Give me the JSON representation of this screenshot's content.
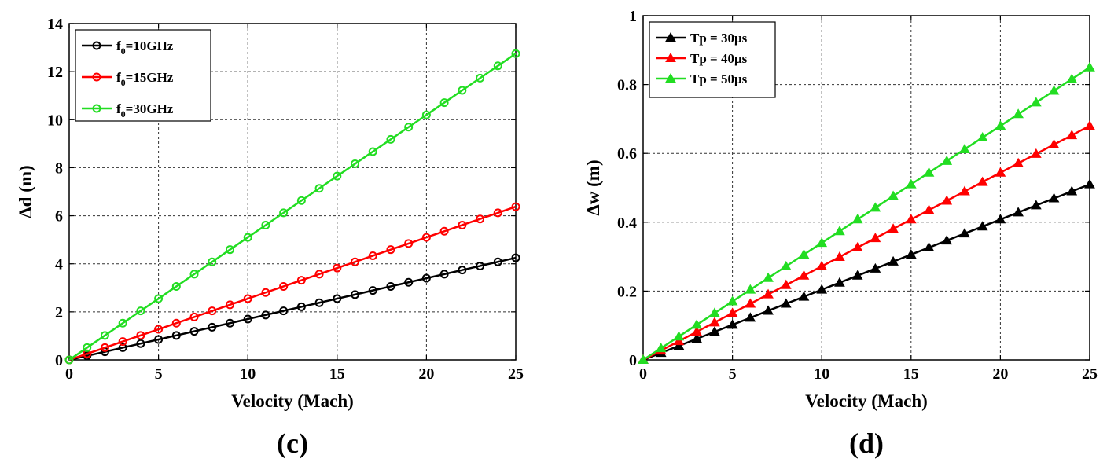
{
  "chart_data": [
    {
      "type": "line",
      "caption": "(c)",
      "xlabel": "Velocity (Mach)",
      "ylabel": "Δd (m)",
      "xlim": [
        0,
        25
      ],
      "ylim": [
        0,
        14
      ],
      "xticks": [
        0,
        5,
        10,
        15,
        20,
        25
      ],
      "yticks": [
        0,
        2,
        4,
        6,
        8,
        10,
        12,
        14
      ],
      "xtick_labels": [
        "0",
        "5",
        "10",
        "15",
        "20",
        "25"
      ],
      "ytick_labels": [
        "0",
        "2",
        "4",
        "6",
        "8",
        "10",
        "12",
        "14"
      ],
      "grid": true,
      "legend_position": "top-left",
      "marker": "circle",
      "x": [
        0,
        1,
        2,
        3,
        4,
        5,
        6,
        7,
        8,
        9,
        10,
        11,
        12,
        13,
        14,
        15,
        16,
        17,
        18,
        19,
        20,
        21,
        22,
        23,
        24,
        25
      ],
      "series": [
        {
          "name": "f0=10GHz",
          "label_main": "f",
          "label_sub": "0",
          "label_rest": "=10GHz",
          "color": "#000000",
          "values": [
            0,
            0.17,
            0.34,
            0.51,
            0.68,
            0.85,
            1.02,
            1.19,
            1.36,
            1.53,
            1.7,
            1.87,
            2.04,
            2.21,
            2.38,
            2.55,
            2.72,
            2.89,
            3.06,
            3.23,
            3.4,
            3.57,
            3.74,
            3.91,
            4.08,
            4.25
          ]
        },
        {
          "name": "f0=15GHz",
          "label_main": "f",
          "label_sub": "0",
          "label_rest": "=15GHz",
          "color": "#ff0000",
          "values": [
            0,
            0.255,
            0.51,
            0.765,
            1.02,
            1.275,
            1.53,
            1.785,
            2.04,
            2.295,
            2.55,
            2.805,
            3.06,
            3.315,
            3.57,
            3.825,
            4.08,
            4.335,
            4.59,
            4.845,
            5.1,
            5.355,
            5.61,
            5.865,
            6.12,
            6.375
          ]
        },
        {
          "name": "f0=30GHz",
          "label_main": "f",
          "label_sub": "0",
          "label_rest": "=30GHz",
          "color": "#22dd22",
          "values": [
            0,
            0.51,
            1.02,
            1.53,
            2.04,
            2.55,
            3.06,
            3.57,
            4.08,
            4.59,
            5.1,
            5.61,
            6.12,
            6.63,
            7.14,
            7.65,
            8.16,
            8.67,
            9.18,
            9.69,
            10.2,
            10.71,
            11.22,
            11.73,
            12.24,
            12.75
          ]
        }
      ]
    },
    {
      "type": "line",
      "caption": "(d)",
      "xlabel": "Velocity (Mach)",
      "ylabel": "Δw (m)",
      "xlim": [
        0,
        25
      ],
      "ylim": [
        0,
        1
      ],
      "xticks": [
        0,
        5,
        10,
        15,
        20,
        25
      ],
      "yticks": [
        0,
        0.2,
        0.4,
        0.6,
        0.8,
        1
      ],
      "xtick_labels": [
        "0",
        "5",
        "10",
        "15",
        "20",
        "25"
      ],
      "ytick_labels": [
        "0",
        "0.2",
        "0.4",
        "0.6",
        "0.8",
        "1"
      ],
      "grid": true,
      "legend_position": "top-left",
      "marker": "triangle",
      "x": [
        0,
        1,
        2,
        3,
        4,
        5,
        6,
        7,
        8,
        9,
        10,
        11,
        12,
        13,
        14,
        15,
        16,
        17,
        18,
        19,
        20,
        21,
        22,
        23,
        24,
        25
      ],
      "series": [
        {
          "name": "Tp = 30μs",
          "label_main": "Tp = 30μs",
          "color": "#000000",
          "values": [
            0,
            0.0204,
            0.0408,
            0.0612,
            0.0816,
            0.102,
            0.1224,
            0.1428,
            0.1632,
            0.1836,
            0.204,
            0.2244,
            0.2448,
            0.2652,
            0.2856,
            0.306,
            0.3264,
            0.3468,
            0.3672,
            0.3876,
            0.408,
            0.4284,
            0.4488,
            0.4692,
            0.4896,
            0.51
          ]
        },
        {
          "name": "Tp = 40μs",
          "label_main": "Tp = 40μs",
          "color": "#ff0000",
          "values": [
            0,
            0.0272,
            0.0544,
            0.0816,
            0.1088,
            0.136,
            0.1632,
            0.1904,
            0.2176,
            0.2448,
            0.272,
            0.2992,
            0.3264,
            0.3536,
            0.3808,
            0.408,
            0.4352,
            0.4624,
            0.4896,
            0.5168,
            0.544,
            0.5712,
            0.5984,
            0.6256,
            0.6528,
            0.68
          ]
        },
        {
          "name": "Tp = 50μs",
          "label_main": "Tp = 50μs",
          "color": "#22dd22",
          "values": [
            0,
            0.034,
            0.068,
            0.102,
            0.136,
            0.17,
            0.204,
            0.238,
            0.272,
            0.306,
            0.34,
            0.374,
            0.408,
            0.442,
            0.476,
            0.51,
            0.544,
            0.578,
            0.612,
            0.646,
            0.68,
            0.714,
            0.748,
            0.782,
            0.816,
            0.85
          ]
        }
      ]
    }
  ]
}
